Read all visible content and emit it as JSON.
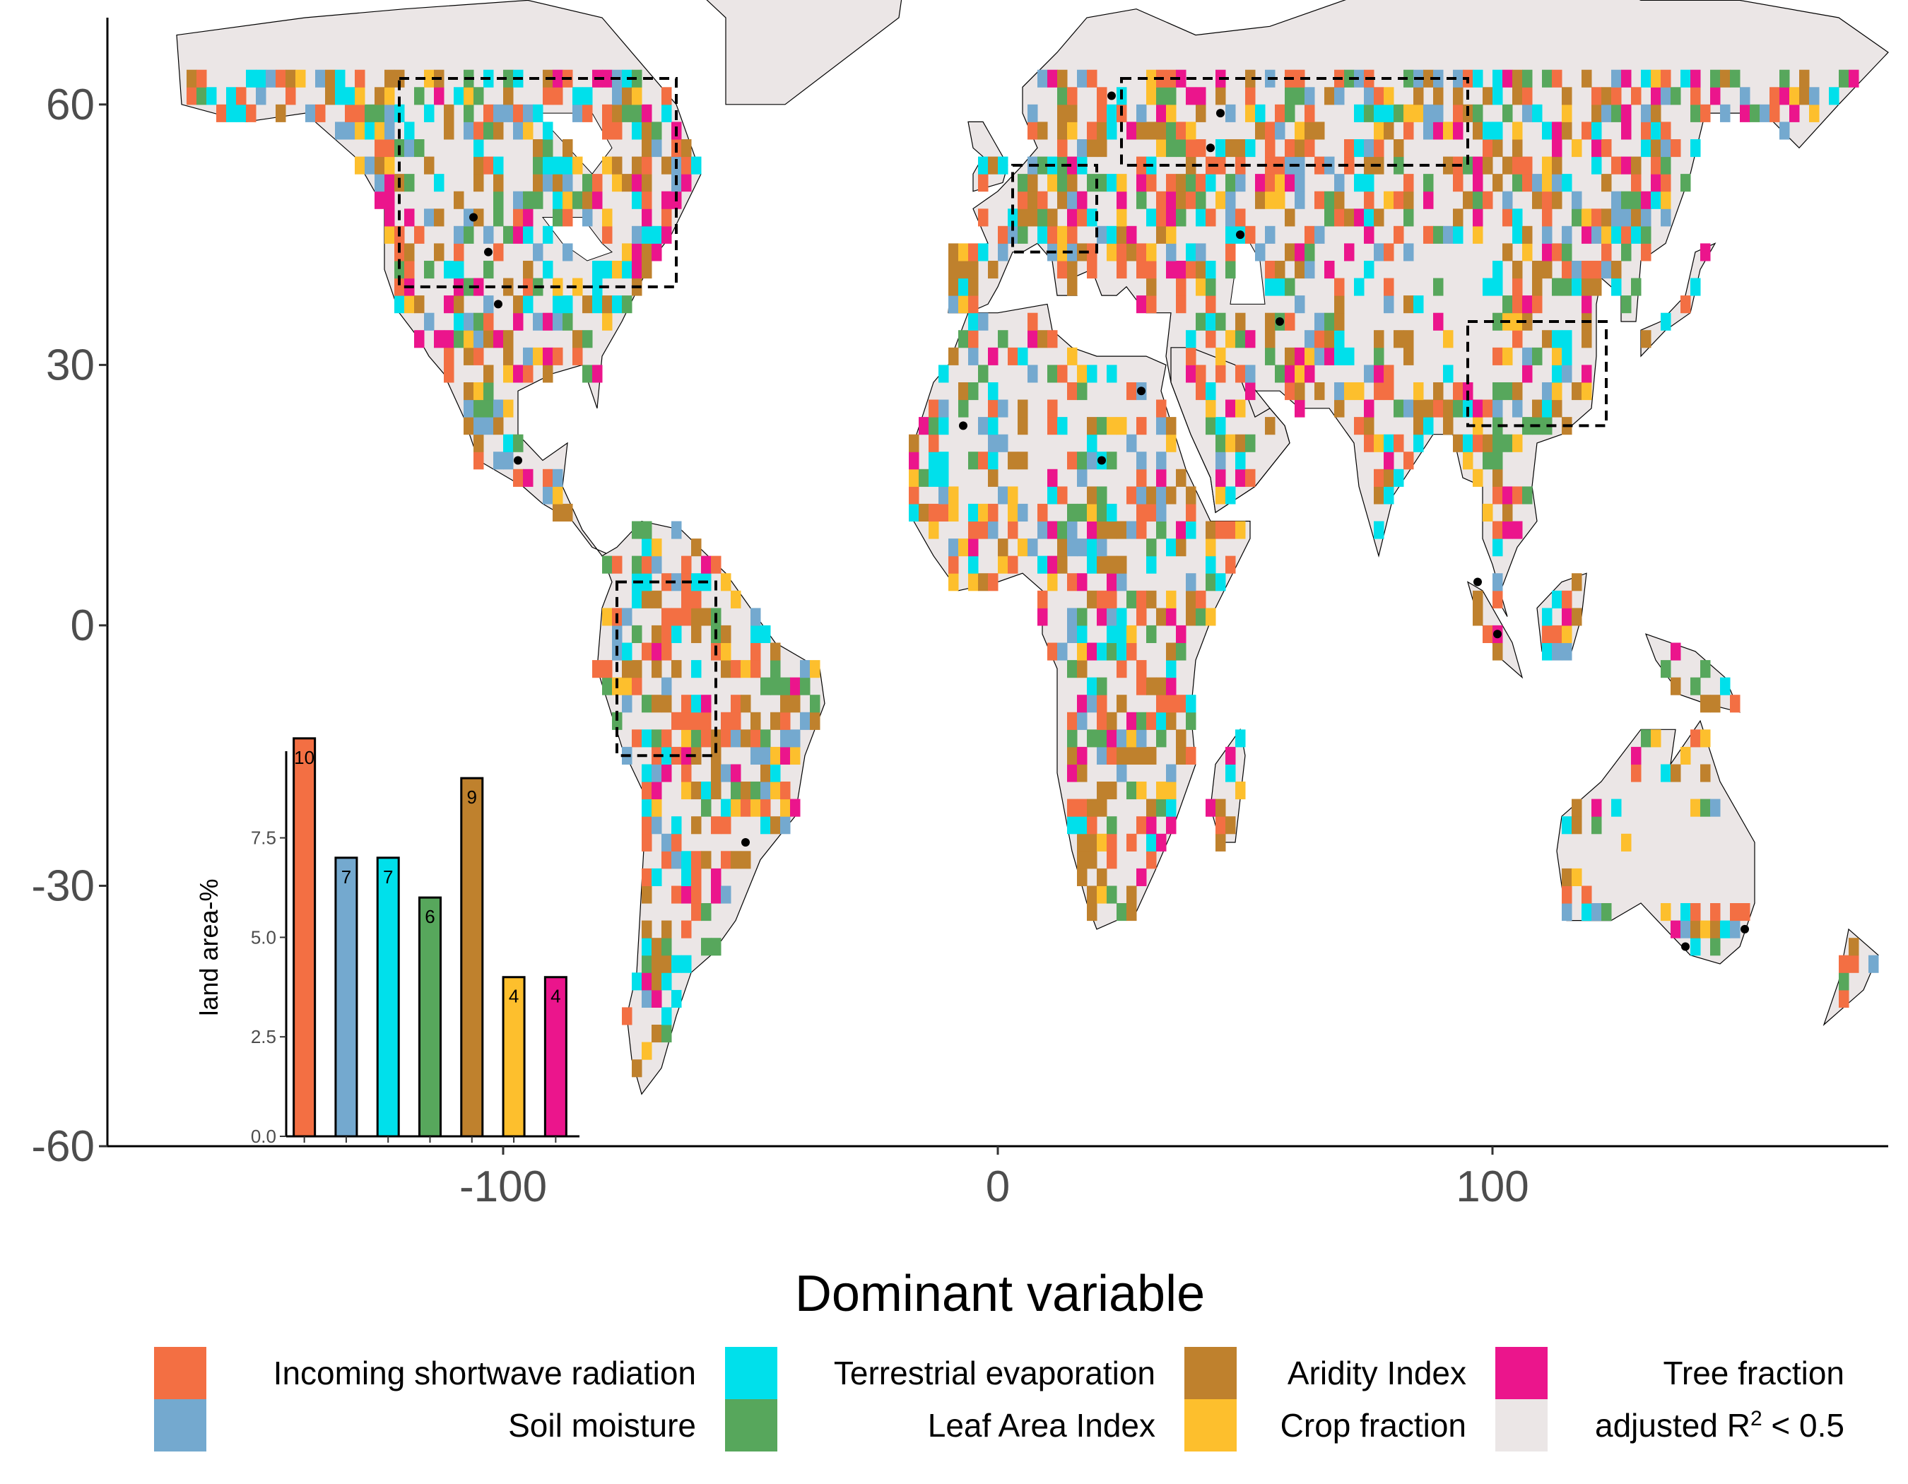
{
  "map": {
    "y_ticks": [
      {
        "value": 60,
        "label": "60"
      },
      {
        "value": 30,
        "label": "30"
      },
      {
        "value": 0,
        "label": "0"
      },
      {
        "value": -30,
        "label": "-30"
      },
      {
        "value": -60,
        "label": "-60"
      }
    ],
    "x_ticks": [
      {
        "value": -100,
        "label": "-100"
      },
      {
        "value": 0,
        "label": "0"
      },
      {
        "value": 100,
        "label": "100"
      }
    ],
    "lon_range": [
      -180,
      180
    ],
    "lat_range": [
      -60,
      70
    ],
    "study_boxes": [
      {
        "lon": [
          -121,
          -65
        ],
        "lat": [
          39,
          63
        ]
      },
      {
        "lon": [
          25,
          95
        ],
        "lat": [
          53,
          63
        ]
      },
      {
        "lon": [
          3,
          20
        ],
        "lat": [
          43,
          53
        ]
      },
      {
        "lon": [
          95,
          123
        ],
        "lat": [
          23,
          35
        ]
      },
      {
        "lon": [
          -77,
          -57
        ],
        "lat": [
          -15,
          5
        ]
      }
    ],
    "sites": [
      {
        "lon": -106,
        "lat": 47
      },
      {
        "lon": -103,
        "lat": 43
      },
      {
        "lon": -101,
        "lat": 37
      },
      {
        "lon": -97,
        "lat": 19
      },
      {
        "lon": -51,
        "lat": -25
      },
      {
        "lon": 23,
        "lat": 61
      },
      {
        "lon": 45,
        "lat": 59
      },
      {
        "lon": 43,
        "lat": 55
      },
      {
        "lon": 49,
        "lat": 45
      },
      {
        "lon": 29,
        "lat": 27
      },
      {
        "lon": 57,
        "lat": 35
      },
      {
        "lon": 21,
        "lat": 19
      },
      {
        "lon": -7,
        "lat": 23
      },
      {
        "lon": 97,
        "lat": 5
      },
      {
        "lon": 101,
        "lat": -1
      },
      {
        "lon": 139,
        "lat": -37
      },
      {
        "lon": 151,
        "lat": -35
      }
    ]
  },
  "inset": {
    "ylabel": "land area-%",
    "y_ticks": [
      {
        "value": 0,
        "label": "0.0"
      },
      {
        "value": 2.5,
        "label": "2.5"
      },
      {
        "value": 5,
        "label": "5.0"
      },
      {
        "value": 7.5,
        "label": "7.5"
      }
    ]
  },
  "chart_data": {
    "type": "bar",
    "categories": [
      "Incoming shortwave radiation",
      "Soil moisture",
      "Terrestrial evaporation",
      "Leaf Area Index",
      "Aridity Index",
      "Crop fraction",
      "Tree fraction"
    ],
    "values": [
      10,
      7,
      7,
      6,
      9,
      4,
      4
    ],
    "bar_labels": [
      "10",
      "7",
      "7",
      "6",
      "9",
      "4",
      "4"
    ],
    "colors": [
      "#f36f43",
      "#74a9cf",
      "#00e0eb",
      "#57a75c",
      "#bf812d",
      "#fdbf2d",
      "#eb158c"
    ],
    "ylabel": "land area-%",
    "ylim": [
      0,
      9.5
    ]
  },
  "legend": {
    "title": "Dominant variable",
    "items": [
      {
        "label": "Incoming shortwave radiation",
        "color": "#f36f43"
      },
      {
        "label": "Soil moisture",
        "color": "#74a9cf"
      },
      {
        "label": "Terrestrial evaporation",
        "color": "#00e0eb"
      },
      {
        "label": "Leaf Area Index",
        "color": "#57a75c"
      },
      {
        "label": "Aridity Index",
        "color": "#bf812d"
      },
      {
        "label": "Crop fraction",
        "color": "#fdbf2d"
      },
      {
        "label": "Tree fraction",
        "color": "#eb158c"
      },
      {
        "label": "adjusted R",
        "sup": "2",
        "suffix": " < 0.5",
        "color": "#ebe6e6"
      }
    ]
  }
}
